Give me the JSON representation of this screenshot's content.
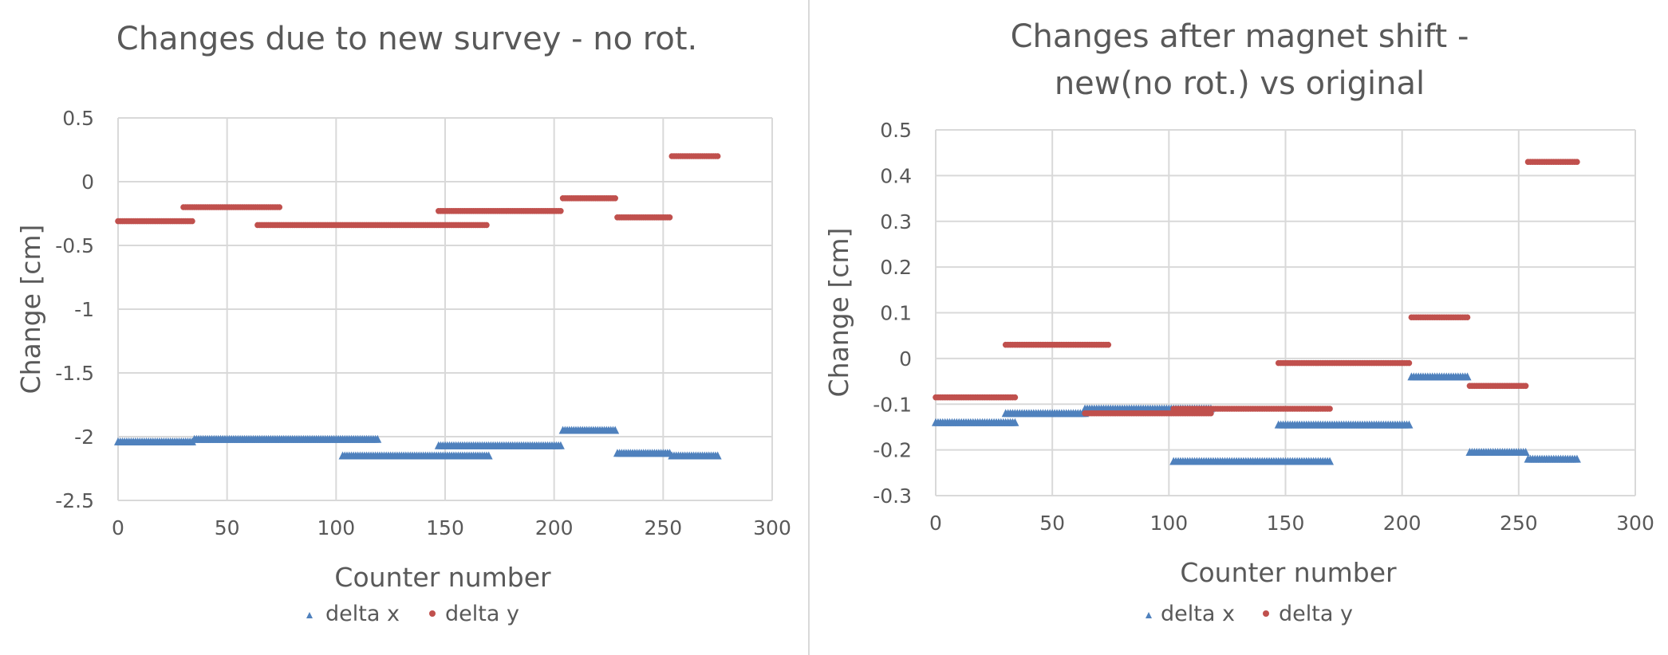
{
  "charts": [
    {
      "title": "Changes due to new survey - no rot.",
      "xlabel": "Counter number",
      "ylabel": "Change [cm]",
      "x_ticks": [
        "0",
        "50",
        "100",
        "150",
        "200",
        "250",
        "300"
      ],
      "y_ticks": [
        "0.5",
        "0",
        "-0.5",
        "-1",
        "-1.5",
        "-2",
        "-2.5"
      ],
      "legend": [
        "delta x",
        "delta y"
      ]
    },
    {
      "title_lines": [
        "Changes after magnet shift -",
        "new(no rot.) vs original"
      ],
      "xlabel": "Counter number",
      "ylabel": "Change [cm]",
      "x_ticks": [
        "0",
        "50",
        "100",
        "150",
        "200",
        "250",
        "300"
      ],
      "y_ticks": [
        "0.5",
        "0.4",
        "0.3",
        "0.2",
        "0.1",
        "0",
        "-0.1",
        "-0.2",
        "-0.3"
      ],
      "legend": [
        "delta x",
        "delta y"
      ]
    }
  ],
  "colors": {
    "delta_x": "#4f81bd",
    "delta_y": "#c0504d",
    "grid": "#d9d9d9",
    "text": "#595959"
  },
  "chart_data": [
    {
      "type": "scatter",
      "title": "Changes due to new survey - no rot.",
      "xlabel": "Counter number",
      "ylabel": "Change [cm]",
      "xlim": [
        0,
        300
      ],
      "ylim": [
        -2.5,
        0.5
      ],
      "grid": true,
      "legend_position": "bottom",
      "series": [
        {
          "name": "delta x",
          "marker": "triangle",
          "segments": [
            {
              "x_from": 0,
              "x_to": 34,
              "y": -2.04
            },
            {
              "x_from": 35,
              "x_to": 102,
              "y": -2.02
            },
            {
              "x_from": 103,
              "x_to": 119,
              "y": -2.02
            },
            {
              "x_from": 103,
              "x_to": 170,
              "y": -2.15
            },
            {
              "x_from": 147,
              "x_to": 203,
              "y": -2.07
            },
            {
              "x_from": 204,
              "x_to": 228,
              "y": -1.95
            },
            {
              "x_from": 229,
              "x_to": 253,
              "y": -2.13
            },
            {
              "x_from": 254,
              "x_to": 275,
              "y": -2.15
            }
          ]
        },
        {
          "name": "delta y",
          "marker": "circle",
          "segments": [
            {
              "x_from": 0,
              "x_to": 34,
              "y": -0.31
            },
            {
              "x_from": 30,
              "x_to": 74,
              "y": -0.2
            },
            {
              "x_from": 64,
              "x_to": 169,
              "y": -0.34
            },
            {
              "x_from": 147,
              "x_to": 203,
              "y": -0.23
            },
            {
              "x_from": 204,
              "x_to": 228,
              "y": -0.13
            },
            {
              "x_from": 229,
              "x_to": 253,
              "y": -0.28
            },
            {
              "x_from": 254,
              "x_to": 275,
              "y": 0.2
            }
          ]
        }
      ]
    },
    {
      "type": "scatter",
      "title": "Changes after magnet shift - new(no rot.) vs original",
      "xlabel": "Counter number",
      "ylabel": "Change [cm]",
      "xlim": [
        0,
        300
      ],
      "ylim": [
        -0.3,
        0.5
      ],
      "grid": true,
      "legend_position": "bottom",
      "series": [
        {
          "name": "delta x",
          "marker": "triangle",
          "segments": [
            {
              "x_from": 0,
              "x_to": 34,
              "y": -0.14
            },
            {
              "x_from": 30,
              "x_to": 64,
              "y": -0.12
            },
            {
              "x_from": 64,
              "x_to": 118,
              "y": -0.11
            },
            {
              "x_from": 102,
              "x_to": 169,
              "y": -0.225
            },
            {
              "x_from": 147,
              "x_to": 203,
              "y": -0.145
            },
            {
              "x_from": 204,
              "x_to": 228,
              "y": -0.04
            },
            {
              "x_from": 229,
              "x_to": 253,
              "y": -0.205
            },
            {
              "x_from": 254,
              "x_to": 275,
              "y": -0.22
            }
          ]
        },
        {
          "name": "delta y",
          "marker": "circle",
          "segments": [
            {
              "x_from": 0,
              "x_to": 34,
              "y": -0.085
            },
            {
              "x_from": 30,
              "x_to": 74,
              "y": 0.03
            },
            {
              "x_from": 64,
              "x_to": 118,
              "y": -0.12
            },
            {
              "x_from": 102,
              "x_to": 169,
              "y": -0.11
            },
            {
              "x_from": 147,
              "x_to": 203,
              "y": -0.01
            },
            {
              "x_from": 204,
              "x_to": 228,
              "y": 0.09
            },
            {
              "x_from": 229,
              "x_to": 253,
              "y": -0.06
            },
            {
              "x_from": 254,
              "x_to": 275,
              "y": 0.43
            }
          ]
        }
      ]
    }
  ]
}
